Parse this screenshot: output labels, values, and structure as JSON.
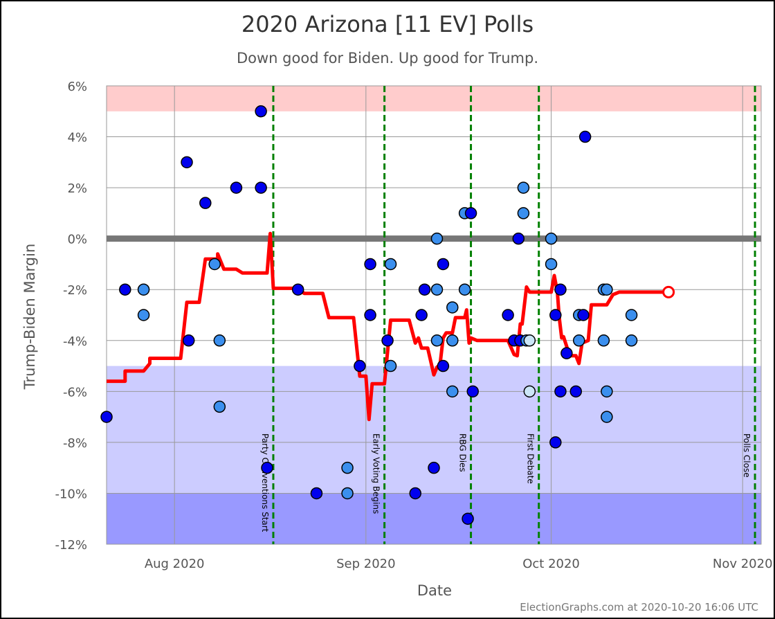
{
  "chart_data": {
    "type": "scatter",
    "title": "2020 Arizona [11 EV] Polls",
    "subtitle": "Down good for Biden. Up good for Trump.",
    "xlabel": "Date",
    "ylabel": "Trump-Biden Margin",
    "credit": "ElectionGraphs.com at 2020-10-20 16:06 UTC",
    "xlim": [
      "2020-07-21",
      "2020-11-04"
    ],
    "ylim": [
      -12,
      6
    ],
    "y_ticks": [
      6,
      4,
      2,
      0,
      -2,
      -4,
      -6,
      -8,
      -10,
      -12
    ],
    "y_tick_labels": [
      "6%",
      "4%",
      "2%",
      "0%",
      "-2%",
      "-4%",
      "-6%",
      "-8%",
      "-10%",
      "-12%"
    ],
    "x_ticks": [
      "2020-08-01",
      "2020-09-01",
      "2020-10-01",
      "2020-11-01"
    ],
    "x_tick_labels": [
      "Aug 2020",
      "Sep 2020",
      "Oct 2020",
      "Nov 2020"
    ],
    "grid": true,
    "bands": [
      {
        "y0": 5,
        "y1": 6,
        "color": "#ffcccc"
      },
      {
        "y0": -10,
        "y1": -5,
        "color": "#ccccff"
      },
      {
        "y0": -12,
        "y1": -10,
        "color": "#9999ff"
      }
    ],
    "zero_line": {
      "y": 0,
      "color": "#777777"
    },
    "events": [
      {
        "date": "2020-08-17",
        "label": "Party Conventions Start"
      },
      {
        "date": "2020-09-04",
        "label": "Early Voting Begins"
      },
      {
        "date": "2020-09-18",
        "label": "RBG Dies"
      },
      {
        "date": "2020-09-29",
        "label": "First Debate"
      },
      {
        "date": "2020-11-03",
        "label": "Polls Close"
      }
    ],
    "event_color": "#008000",
    "average_color": "#ff0000",
    "point_colors": {
      "dark": "#0000ee",
      "medium": "#3b8fee",
      "light": "#cce6f7"
    },
    "average_line": [
      [
        "2020-07-21",
        -5.6
      ],
      [
        "2020-07-24",
        -5.6
      ],
      [
        "2020-07-24",
        -5.2
      ],
      [
        "2020-07-27",
        -5.2
      ],
      [
        "2020-07-28",
        -4.9
      ],
      [
        "2020-07-28",
        -4.7
      ],
      [
        "2020-08-02",
        -4.7
      ],
      [
        "2020-08-03",
        -2.5
      ],
      [
        "2020-08-05",
        -2.5
      ],
      [
        "2020-08-06",
        -0.8
      ],
      [
        "2020-08-08",
        -0.8
      ],
      [
        "2020-08-08",
        -0.6
      ],
      [
        "2020-08-09",
        -1.2
      ],
      [
        "2020-08-11",
        -1.2
      ],
      [
        "2020-08-12",
        -1.35
      ],
      [
        "2020-08-16",
        -1.35
      ],
      [
        "2020-08-16.5",
        0.2
      ],
      [
        "2020-08-17",
        -1.95
      ],
      [
        "2020-08-21",
        -1.95
      ],
      [
        "2020-08-22",
        -2.15
      ],
      [
        "2020-08-25",
        -2.15
      ],
      [
        "2020-08-26",
        -3.1
      ],
      [
        "2020-08-30",
        -3.1
      ],
      [
        "2020-08-31",
        -5.4
      ],
      [
        "2020-09-01",
        -5.4
      ],
      [
        "2020-09-01.5",
        -7.1
      ],
      [
        "2020-09-02",
        -5.7
      ],
      [
        "2020-09-04",
        -5.7
      ],
      [
        "2020-09-05",
        -3.2
      ],
      [
        "2020-09-08",
        -3.2
      ],
      [
        "2020-09-09",
        -4.1
      ],
      [
        "2020-09-09.5",
        -3.9
      ],
      [
        "2020-09-10",
        -4.3
      ],
      [
        "2020-09-11",
        -4.3
      ],
      [
        "2020-09-12",
        -5.35
      ],
      [
        "2020-09-12.5",
        -5.05
      ],
      [
        "2020-09-13",
        -4.95
      ],
      [
        "2020-09-13.5",
        -3.9
      ],
      [
        "2020-09-14",
        -3.7
      ],
      [
        "2020-09-15",
        -3.7
      ],
      [
        "2020-09-15.5",
        -3.1
      ],
      [
        "2020-09-17",
        -3.1
      ],
      [
        "2020-09-17.3",
        -2.8
      ],
      [
        "2020-09-17.7",
        -4.1
      ],
      [
        "2020-09-18",
        -3.9
      ],
      [
        "2020-09-19",
        -4.0
      ],
      [
        "2020-09-24",
        -4.0
      ],
      [
        "2020-09-25",
        -4.55
      ],
      [
        "2020-09-25.5",
        -4.6
      ],
      [
        "2020-09-26",
        -3.35
      ],
      [
        "2020-09-26.3",
        -3.35
      ],
      [
        "2020-09-27",
        -1.9
      ],
      [
        "2020-09-27.5",
        -2.1
      ],
      [
        "2020-10-01",
        -2.1
      ],
      [
        "2020-10-01.5",
        -1.45
      ],
      [
        "2020-10-02",
        -2.1
      ],
      [
        "2020-10-02.3",
        -3.1
      ],
      [
        "2020-10-02.7",
        -3.9
      ],
      [
        "2020-10-03",
        -3.85
      ],
      [
        "2020-10-04",
        -4.6
      ],
      [
        "2020-10-05",
        -4.6
      ],
      [
        "2020-10-05.5",
        -4.9
      ],
      [
        "2020-10-06",
        -4.1
      ],
      [
        "2020-10-07",
        -4.0
      ],
      [
        "2020-10-07.5",
        -2.6
      ],
      [
        "2020-10-10",
        -2.6
      ],
      [
        "2020-10-11",
        -2.2
      ],
      [
        "2020-10-12",
        -2.1
      ],
      [
        "2020-10-20",
        -2.1
      ]
    ],
    "current_value": {
      "date": "2020-10-20",
      "value": -2.1
    },
    "points": [
      {
        "date": "2020-07-21",
        "value": -7,
        "shade": "dark"
      },
      {
        "date": "2020-07-24",
        "value": -2,
        "shade": "dark"
      },
      {
        "date": "2020-07-27",
        "value": -2,
        "shade": "medium"
      },
      {
        "date": "2020-07-27",
        "value": -3,
        "shade": "medium"
      },
      {
        "date": "2020-08-03",
        "value": 3,
        "shade": "dark"
      },
      {
        "date": "2020-08-03.3",
        "value": -4,
        "shade": "dark"
      },
      {
        "date": "2020-08-06",
        "value": 1.4,
        "shade": "dark"
      },
      {
        "date": "2020-08-07.5",
        "value": -1,
        "shade": "medium"
      },
      {
        "date": "2020-08-08.3",
        "value": -4,
        "shade": "medium"
      },
      {
        "date": "2020-08-08.3",
        "value": -6.6,
        "shade": "medium"
      },
      {
        "date": "2020-08-11",
        "value": 2,
        "shade": "dark"
      },
      {
        "date": "2020-08-15",
        "value": 5,
        "shade": "dark"
      },
      {
        "date": "2020-08-15",
        "value": 2,
        "shade": "dark"
      },
      {
        "date": "2020-08-16",
        "value": -9,
        "shade": "dark"
      },
      {
        "date": "2020-08-21",
        "value": -2,
        "shade": "dark"
      },
      {
        "date": "2020-08-24",
        "value": -10,
        "shade": "dark"
      },
      {
        "date": "2020-08-29",
        "value": -9,
        "shade": "medium"
      },
      {
        "date": "2020-08-29",
        "value": -10,
        "shade": "medium"
      },
      {
        "date": "2020-08-31",
        "value": -5,
        "shade": "dark"
      },
      {
        "date": "2020-09-01.7",
        "value": -1,
        "shade": "dark"
      },
      {
        "date": "2020-09-01.7",
        "value": -3,
        "shade": "dark"
      },
      {
        "date": "2020-09-04.5",
        "value": -4,
        "shade": "dark"
      },
      {
        "date": "2020-09-05",
        "value": -1,
        "shade": "medium"
      },
      {
        "date": "2020-09-05",
        "value": -5,
        "shade": "medium"
      },
      {
        "date": "2020-09-09",
        "value": -10,
        "shade": "dark"
      },
      {
        "date": "2020-09-10",
        "value": -3,
        "shade": "dark"
      },
      {
        "date": "2020-09-10.5",
        "value": -2,
        "shade": "dark"
      },
      {
        "date": "2020-09-12",
        "value": -9,
        "shade": "dark"
      },
      {
        "date": "2020-09-12.5",
        "value": 0,
        "shade": "medium"
      },
      {
        "date": "2020-09-12.5",
        "value": -2,
        "shade": "medium"
      },
      {
        "date": "2020-09-12.5",
        "value": -4,
        "shade": "medium"
      },
      {
        "date": "2020-09-13.5",
        "value": -1,
        "shade": "dark"
      },
      {
        "date": "2020-09-13.5",
        "value": -5,
        "shade": "dark"
      },
      {
        "date": "2020-09-15",
        "value": -2.7,
        "shade": "medium"
      },
      {
        "date": "2020-09-15",
        "value": -4,
        "shade": "medium"
      },
      {
        "date": "2020-09-15",
        "value": -6,
        "shade": "medium"
      },
      {
        "date": "2020-09-17",
        "value": 1,
        "shade": "medium"
      },
      {
        "date": "2020-09-17",
        "value": -2,
        "shade": "medium"
      },
      {
        "date": "2020-09-17.5",
        "value": -11,
        "shade": "dark"
      },
      {
        "date": "2020-09-18",
        "value": 1,
        "shade": "dark"
      },
      {
        "date": "2020-09-18.3",
        "value": -6,
        "shade": "dark"
      },
      {
        "date": "2020-09-24",
        "value": -3,
        "shade": "dark"
      },
      {
        "date": "2020-09-25",
        "value": -4,
        "shade": "dark"
      },
      {
        "date": "2020-09-25.7",
        "value": 0,
        "shade": "dark"
      },
      {
        "date": "2020-09-26",
        "value": -4,
        "shade": "dark"
      },
      {
        "date": "2020-09-26.5",
        "value": 2,
        "shade": "medium"
      },
      {
        "date": "2020-09-26.5",
        "value": 1,
        "shade": "medium"
      },
      {
        "date": "2020-09-27",
        "value": -4,
        "shade": "medium"
      },
      {
        "date": "2020-09-27.5",
        "value": -4,
        "shade": "light"
      },
      {
        "date": "2020-09-27.5",
        "value": -6,
        "shade": "light"
      },
      {
        "date": "2020-10-01",
        "value": 0,
        "shade": "medium"
      },
      {
        "date": "2020-10-01",
        "value": -1,
        "shade": "medium"
      },
      {
        "date": "2020-10-01.7",
        "value": -3,
        "shade": "dark"
      },
      {
        "date": "2020-10-01.7",
        "value": -8,
        "shade": "dark"
      },
      {
        "date": "2020-10-02.5",
        "value": -2,
        "shade": "dark"
      },
      {
        "date": "2020-10-02.5",
        "value": -6,
        "shade": "dark"
      },
      {
        "date": "2020-10-03.5",
        "value": -4.5,
        "shade": "dark"
      },
      {
        "date": "2020-10-05",
        "value": -6,
        "shade": "dark"
      },
      {
        "date": "2020-10-05.5",
        "value": -3,
        "shade": "medium"
      },
      {
        "date": "2020-10-05.5",
        "value": -4,
        "shade": "medium"
      },
      {
        "date": "2020-10-06.2",
        "value": -3,
        "shade": "dark"
      },
      {
        "date": "2020-10-06.5",
        "value": 4,
        "shade": "dark"
      },
      {
        "date": "2020-10-09.5",
        "value": -2,
        "shade": "medium"
      },
      {
        "date": "2020-10-09.5",
        "value": -4,
        "shade": "medium"
      },
      {
        "date": "2020-10-10",
        "value": -2,
        "shade": "medium"
      },
      {
        "date": "2020-10-10",
        "value": -6,
        "shade": "medium"
      },
      {
        "date": "2020-10-10",
        "value": -7,
        "shade": "medium"
      },
      {
        "date": "2020-10-14",
        "value": -3,
        "shade": "medium"
      },
      {
        "date": "2020-10-14",
        "value": -4,
        "shade": "medium"
      }
    ]
  }
}
